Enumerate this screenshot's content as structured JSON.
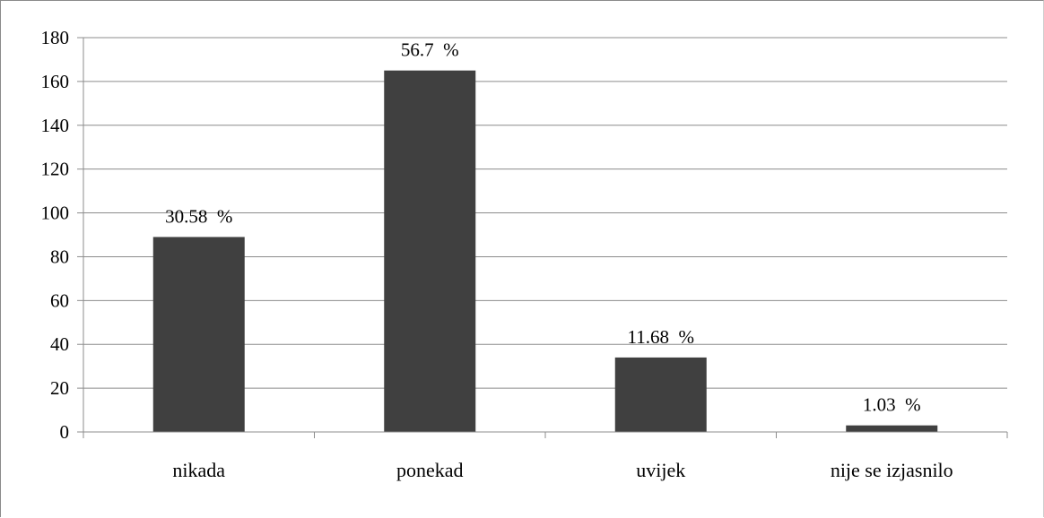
{
  "chart_data": {
    "type": "bar",
    "categories": [
      "nikada",
      "ponekad",
      "uvijek",
      "nije se izjasnilo"
    ],
    "values": [
      89,
      165,
      34,
      3
    ],
    "data_labels": [
      "30.58  %",
      "56.7  %",
      "11.68  %",
      "1.03  %"
    ],
    "title": "",
    "xlabel": "",
    "ylabel": "",
    "ylim": [
      0,
      180
    ],
    "yticks": [
      "0",
      "20",
      "40",
      "60",
      "80",
      "100",
      "120",
      "140",
      "160",
      "180"
    ],
    "grid": true,
    "legend": "none",
    "colors": {
      "bar": "#404040",
      "grid": "#8c8c8c",
      "axis": "#8c8c8c"
    }
  }
}
